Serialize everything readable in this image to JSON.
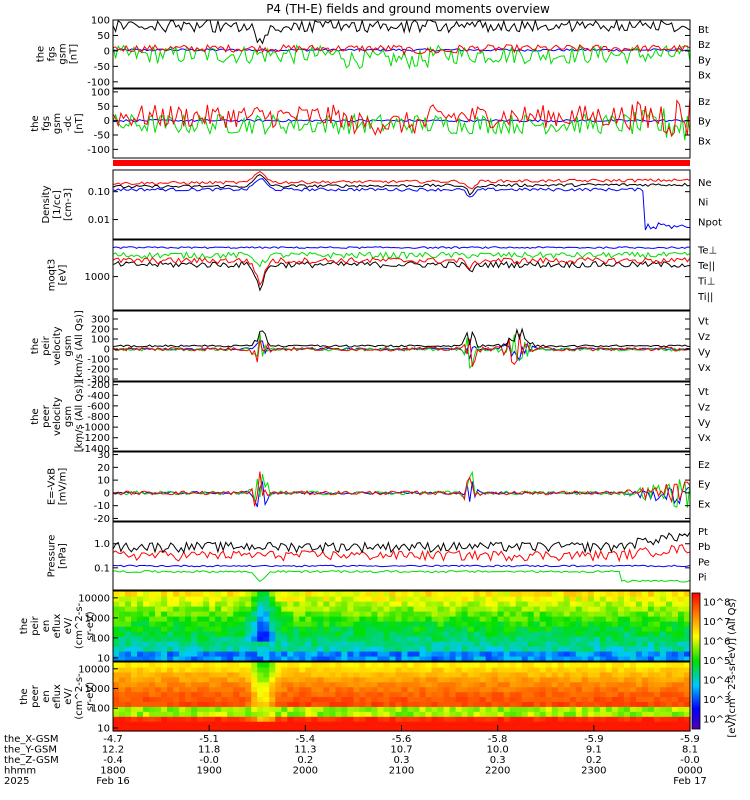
{
  "chart_data": {
    "type": "line",
    "title": "P4 (TH-E) fields and ground moments overview",
    "panels": [
      {
        "id": "fgs_gsm",
        "ylabel": [
          "the",
          "fgs",
          "gsm",
          "[nT]"
        ],
        "ylim": [
          -120,
          100
        ],
        "yticks": [
          "100",
          "50",
          "0",
          "-50",
          "-100"
        ],
        "ytick_values": [
          100,
          50,
          0,
          -50,
          -100
        ],
        "series": [
          {
            "name": "Bt",
            "color": "#000000",
            "base": 70,
            "amp": 25,
            "noise": 40
          },
          {
            "name": "Bz",
            "color": "#ff0000",
            "base": 10,
            "amp": 10,
            "noise": 15
          },
          {
            "name": "By",
            "color": "#00dd00",
            "base": -10,
            "amp": 20,
            "noise": 35
          },
          {
            "name": "Bx",
            "color": "#0000ff",
            "base": 2,
            "amp": 5,
            "noise": 6
          }
        ]
      },
      {
        "id": "fgs_gsm_dc",
        "ylabel": [
          "the",
          "fgs",
          "gsm",
          "-dc",
          "[nT]"
        ],
        "ylim": [
          -130,
          110
        ],
        "yticks": [
          "100",
          "50",
          "0",
          "-50",
          "-100"
        ],
        "ytick_values": [
          100,
          50,
          0,
          -50,
          -100
        ],
        "series": [
          {
            "name": "Bz",
            "color": "#ff0000",
            "base": 20,
            "amp": 30,
            "noise": 50
          },
          {
            "name": "By",
            "color": "#00dd00",
            "base": -10,
            "amp": 25,
            "noise": 40
          },
          {
            "name": "Bx",
            "color": "#0000ff",
            "base": 0,
            "amp": 5,
            "noise": 5
          }
        ]
      },
      {
        "id": "density",
        "ylabel": [
          "Density",
          "[1/cc]",
          "[cm-3]"
        ],
        "ylim": [
          0.002,
          0.6
        ],
        "log": true,
        "yticks": [
          "0.10",
          "0.01"
        ],
        "ytick_values": [
          0.1,
          0.01
        ],
        "series": [
          {
            "name": "Ne",
            "color": "#ff0000",
            "base": 0.2,
            "amp": 0,
            "noise": 0
          },
          {
            "name": "Ni",
            "color": "#000000",
            "base": 0.15,
            "amp": 0,
            "noise": 0
          },
          {
            "name": "Npot",
            "color": "#0000ff",
            "base": 0.12,
            "amp": 0,
            "noise": 0
          }
        ]
      },
      {
        "id": "temperature",
        "ylabel": [
          "moqt3",
          "[eV]"
        ],
        "ylim": [
          150,
          8000
        ],
        "log": true,
        "yticks": [
          "1000"
        ],
        "ytick_values": [
          1000
        ],
        "series": [
          {
            "name": "Te⊥",
            "color": "#ff0000",
            "base": 2500,
            "amp": 0,
            "noise": 0
          },
          {
            "name": "Te||",
            "color": "#000000",
            "base": 2000,
            "amp": 0,
            "noise": 0
          },
          {
            "name": "Ti⊥",
            "color": "#0000ff",
            "base": 5000,
            "amp": 0,
            "noise": 0
          },
          {
            "name": "Ti||",
            "color": "#00dd00",
            "base": 3500,
            "amp": 0,
            "noise": 0
          }
        ]
      },
      {
        "id": "peir_velocity",
        "ylabel": [
          "the",
          "peir",
          "velocity",
          "gsm",
          "[km/s (All Qs)]"
        ],
        "ylim": [
          -320,
          380
        ],
        "yticks": [
          "300",
          "200",
          "100",
          "0",
          "-100",
          "-200",
          "-300"
        ],
        "ytick_values": [
          300,
          200,
          100,
          0,
          -100,
          -200,
          -300
        ],
        "series": [
          {
            "name": "Vt",
            "color": "#000000",
            "base": 10,
            "amp": 0,
            "noise": 0
          },
          {
            "name": "Vz",
            "color": "#ff0000",
            "base": 0,
            "amp": 0,
            "noise": 0
          },
          {
            "name": "Vy",
            "color": "#00dd00",
            "base": -5,
            "amp": 0,
            "noise": 0
          },
          {
            "name": "Vx",
            "color": "#0000ff",
            "base": 0,
            "amp": 0,
            "noise": 0
          }
        ]
      },
      {
        "id": "peer_velocity",
        "ylabel": [
          "the",
          "peer",
          "velocity",
          "gsm",
          "[km/s (All Qs)]"
        ],
        "ylim": [
          -1450,
          -150
        ],
        "yticks": [
          "-200",
          "-400",
          "-600",
          "-800",
          "-1000",
          "-1200",
          "-1400"
        ],
        "ytick_values": [
          -200,
          -400,
          -600,
          -800,
          -1000,
          -1200,
          -1400
        ],
        "series": [
          {
            "name": "Vt",
            "color": "#000000"
          },
          {
            "name": "Vz",
            "color": "#ff0000"
          },
          {
            "name": "Vy",
            "color": "#00dd00"
          },
          {
            "name": "Vx",
            "color": "#0000ff"
          }
        ]
      },
      {
        "id": "efield",
        "ylabel": [
          "E=-VxB",
          "[mV/m]"
        ],
        "ylim": [
          -22,
          32
        ],
        "yticks": [
          "30",
          "20",
          "10",
          "0",
          "-10",
          "-20"
        ],
        "ytick_values": [
          30,
          20,
          10,
          0,
          -10,
          -20
        ],
        "series": [
          {
            "name": "Ez",
            "color": "#ff0000",
            "base": 0,
            "amp": 0,
            "noise": 0
          },
          {
            "name": "Ey",
            "color": "#00dd00",
            "base": 0,
            "amp": 0,
            "noise": 0
          },
          {
            "name": "Ex",
            "color": "#0000ff",
            "base": 0,
            "amp": 0,
            "noise": 0
          }
        ]
      },
      {
        "id": "pressure",
        "ylabel": [
          "Pressure",
          "[nPa]"
        ],
        "ylim": [
          0.012,
          8
        ],
        "log": true,
        "yticks": [
          "1.0",
          "0.1"
        ],
        "ytick_values": [
          1.0,
          0.1
        ],
        "series": [
          {
            "name": "Pt",
            "color": "#000000",
            "base": 0.8,
            "amp": 0,
            "noise": 0
          },
          {
            "name": "Pb",
            "color": "#ff0000",
            "base": 0.4,
            "amp": 0,
            "noise": 0
          },
          {
            "name": "Pe",
            "color": "#00dd00",
            "base": 0.07,
            "amp": 0,
            "noise": 0
          },
          {
            "name": "Pi",
            "color": "#0000ff",
            "base": 0.12,
            "amp": 0,
            "noise": 0
          }
        ]
      }
    ],
    "spectrograms": [
      {
        "id": "peir_en_eflux",
        "ylabel": [
          "the",
          "peir",
          "en",
          "eflux",
          "eV/",
          "(cm^2-s-",
          "sr-eV)"
        ],
        "yticks": [
          "10000",
          "1000",
          "100",
          "10"
        ],
        "ytick_values": [
          10000,
          1000,
          100,
          10
        ],
        "ylim": [
          7,
          22000
        ]
      },
      {
        "id": "peer_en_eflux",
        "ylabel": [
          "the",
          "peer",
          "en",
          "eflux",
          "eV/",
          "(cm^2-s-",
          "sr-eV)"
        ],
        "yticks": [
          "10000",
          "1000",
          "100",
          "10"
        ],
        "ytick_values": [
          10000,
          1000,
          100,
          10
        ],
        "ylim": [
          7,
          22000
        ]
      }
    ],
    "colorbar": {
      "label": "[eV/(cm^2-s-sr-eV)] (All Qs)",
      "ticks": [
        "10^8",
        "10^7",
        "10^6",
        "10^5",
        "10^4",
        "10^3",
        "10^2"
      ],
      "tick_values": [
        8,
        7,
        6,
        5,
        4,
        3,
        2
      ],
      "range": [
        1.5,
        8.5
      ]
    },
    "x_axis": {
      "time_ticks": [
        "1800",
        "1900",
        "2000",
        "2100",
        "2200",
        "2300",
        "0000"
      ],
      "rows": [
        {
          "label": "the_X-GSM",
          "values": [
            "-4.7",
            "-5.1",
            "-5.4",
            "-5.6",
            "-5.8",
            "-5.9",
            "-5.9"
          ]
        },
        {
          "label": "the_Y-GSM",
          "values": [
            "12.2",
            "11.8",
            "11.3",
            "10.7",
            "10.0",
            "9.1",
            "8.1"
          ]
        },
        {
          "label": "the_Z-GSM",
          "values": [
            "-0.4",
            "-0.0",
            "0.2",
            "0.3",
            "0.3",
            "0.2",
            "-0.0"
          ]
        },
        {
          "label": "hhmm",
          "values": [
            "1800",
            "1900",
            "2000",
            "2100",
            "2200",
            "2300",
            "0000"
          ]
        },
        {
          "label": "2025",
          "values": [
            "Feb 16",
            "",
            "",
            "",
            "",
            "",
            "Feb 17"
          ]
        }
      ]
    }
  }
}
